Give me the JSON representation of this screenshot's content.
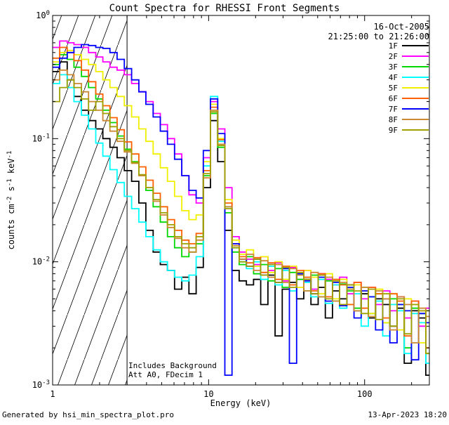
{
  "legend": {
    "date": "16-Oct-2005",
    "time": "21:25:00 to 21:26:00"
  },
  "annotations": {
    "line1": "Includes Background",
    "line2": "Att A0, FDecim 1"
  },
  "footer": {
    "left": "Generated by hsi_min_spectra_plot.pro",
    "right": "13-Apr-2023 18:20"
  },
  "chart_data": {
    "type": "line",
    "mode": "histogram-steps",
    "title": "Count Spectra for RHESSI Front Segments",
    "xlabel": "Energy (keV)",
    "ylabel": "counts cm-2 s-1 keV-1",
    "ylabel_parts": [
      {
        "t": "counts cm",
        "sup": false
      },
      {
        "t": "-2",
        "sup": true
      },
      {
        "t": " s",
        "sup": false
      },
      {
        "t": "-1",
        "sup": true
      },
      {
        "t": " keV",
        "sup": false
      },
      {
        "t": "-1",
        "sup": true
      }
    ],
    "x_scale": "log",
    "y_scale": "log",
    "xlim": [
      1,
      260
    ],
    "ylim": [
      0.001,
      1
    ],
    "x_major_ticks": [
      1,
      10,
      100
    ],
    "x_tick_labels": [
      "1",
      "10",
      "100"
    ],
    "y_tick_exponents": [
      0,
      -1,
      -2,
      -3
    ],
    "excluded_region_kev": [
      1,
      3
    ],
    "legend_position": "top-right",
    "grid": false,
    "background": "#ffffff",
    "axis_color": "#000000",
    "energy_edges": [
      1.0,
      1.11,
      1.24,
      1.37,
      1.53,
      1.7,
      1.89,
      2.1,
      2.33,
      2.59,
      2.88,
      3.21,
      3.57,
      3.96,
      4.41,
      4.9,
      5.45,
      6.05,
      6.73,
      7.48,
      8.32,
      9.25,
      10.28,
      11.43,
      12.71,
      14.13,
      15.7,
      17.46,
      19.41,
      21.58,
      23.99,
      26.67,
      29.65,
      32.96,
      36.64,
      40.74,
      45.29,
      50.35,
      55.98,
      62.23,
      69.18,
      76.91,
      85.51,
      95.06,
      105.7,
      117.5,
      130.6,
      145.2,
      161.4,
      179.5,
      199.5,
      221.8,
      246.6,
      274.2,
      304.8
    ],
    "series": [
      {
        "name": "1F",
        "color": "#000000",
        "values": [
          0.35,
          0.42,
          0.3,
          0.22,
          0.17,
          0.14,
          0.12,
          0.1,
          0.085,
          0.07,
          0.055,
          0.045,
          0.03,
          0.018,
          0.012,
          0.0095,
          0.0085,
          0.006,
          0.0075,
          0.0055,
          0.009,
          0.04,
          0.14,
          0.065,
          0.018,
          0.0085,
          0.007,
          0.0065,
          0.0072,
          0.0045,
          0.0078,
          0.0025,
          0.006,
          0.0068,
          0.005,
          0.0072,
          0.0045,
          0.0062,
          0.0035,
          0.0058,
          0.005,
          0.0065,
          0.004,
          0.0055,
          0.0035,
          0.005,
          0.0045,
          0.003,
          0.0042,
          0.0015,
          0.004,
          0.0035,
          0.0012,
          0.003
        ]
      },
      {
        "name": "2F",
        "color": "#ff00ff",
        "values": [
          0.55,
          0.62,
          0.6,
          0.58,
          0.55,
          0.5,
          0.46,
          0.42,
          0.38,
          0.36,
          0.33,
          0.28,
          0.24,
          0.2,
          0.16,
          0.13,
          0.1,
          0.075,
          0.05,
          0.035,
          0.03,
          0.07,
          0.2,
          0.12,
          0.04,
          0.016,
          0.012,
          0.0105,
          0.0095,
          0.011,
          0.0085,
          0.0098,
          0.007,
          0.009,
          0.0078,
          0.0085,
          0.006,
          0.008,
          0.0072,
          0.0065,
          0.0075,
          0.0055,
          0.0068,
          0.005,
          0.0062,
          0.0045,
          0.0058,
          0.004,
          0.0052,
          0.0035,
          0.0048,
          0.003,
          0.0042,
          0.0025
        ]
      },
      {
        "name": "3F",
        "color": "#00d800",
        "values": [
          0.4,
          0.48,
          0.44,
          0.38,
          0.32,
          0.26,
          0.21,
          0.17,
          0.135,
          0.105,
          0.082,
          0.065,
          0.05,
          0.038,
          0.028,
          0.021,
          0.016,
          0.013,
          0.011,
          0.012,
          0.014,
          0.05,
          0.16,
          0.085,
          0.025,
          0.012,
          0.0095,
          0.011,
          0.008,
          0.0095,
          0.007,
          0.0088,
          0.0062,
          0.0082,
          0.0072,
          0.0058,
          0.0078,
          0.0052,
          0.007,
          0.0048,
          0.0066,
          0.0058,
          0.0042,
          0.0062,
          0.0038,
          0.0055,
          0.0032,
          0.005,
          0.0045,
          0.002,
          0.0042,
          0.0038,
          0.0018,
          0.0035
        ]
      },
      {
        "name": "4F",
        "color": "#00ffff",
        "values": [
          0.28,
          0.33,
          0.26,
          0.2,
          0.155,
          0.12,
          0.092,
          0.072,
          0.056,
          0.044,
          0.034,
          0.027,
          0.021,
          0.016,
          0.0125,
          0.01,
          0.0085,
          0.0075,
          0.007,
          0.0078,
          0.011,
          0.06,
          0.22,
          0.095,
          0.028,
          0.013,
          0.01,
          0.0088,
          0.01,
          0.0072,
          0.0092,
          0.0065,
          0.0085,
          0.0058,
          0.0078,
          0.0068,
          0.0052,
          0.0072,
          0.0046,
          0.0065,
          0.0042,
          0.006,
          0.0055,
          0.003,
          0.0052,
          0.0048,
          0.0025,
          0.0045,
          0.004,
          0.0018,
          0.0038,
          0.0032,
          0.0015,
          0.0028
        ]
      },
      {
        "name": "5F",
        "color": "#f0f000",
        "values": [
          0.42,
          0.5,
          0.52,
          0.48,
          0.44,
          0.4,
          0.35,
          0.3,
          0.26,
          0.22,
          0.185,
          0.15,
          0.12,
          0.095,
          0.075,
          0.058,
          0.045,
          0.034,
          0.026,
          0.022,
          0.024,
          0.065,
          0.19,
          0.1,
          0.032,
          0.015,
          0.0115,
          0.0125,
          0.0092,
          0.011,
          0.0082,
          0.01,
          0.0072,
          0.0092,
          0.0062,
          0.0085,
          0.0075,
          0.0055,
          0.008,
          0.005,
          0.0072,
          0.0045,
          0.0065,
          0.0058,
          0.0038,
          0.006,
          0.0032,
          0.0055,
          0.0028,
          0.005,
          0.0045,
          0.0022,
          0.004,
          0.0035
        ]
      },
      {
        "name": "6F",
        "color": "#ff6000",
        "values": [
          0.45,
          0.55,
          0.5,
          0.43,
          0.36,
          0.29,
          0.23,
          0.185,
          0.148,
          0.118,
          0.094,
          0.075,
          0.059,
          0.046,
          0.036,
          0.028,
          0.022,
          0.018,
          0.015,
          0.014,
          0.017,
          0.055,
          0.18,
          0.098,
          0.03,
          0.014,
          0.011,
          0.0098,
          0.0108,
          0.0082,
          0.0098,
          0.0072,
          0.0092,
          0.0065,
          0.0085,
          0.0075,
          0.0058,
          0.008,
          0.0052,
          0.0072,
          0.0065,
          0.0045,
          0.0068,
          0.0042,
          0.0062,
          0.0055,
          0.0035,
          0.0055,
          0.0048,
          0.0025,
          0.0048,
          0.004,
          0.002,
          0.0038
        ]
      },
      {
        "name": "7F",
        "color": "#0000ff",
        "values": [
          0.38,
          0.45,
          0.5,
          0.55,
          0.58,
          0.57,
          0.55,
          0.54,
          0.5,
          0.44,
          0.37,
          0.3,
          0.24,
          0.19,
          0.15,
          0.115,
          0.09,
          0.068,
          0.05,
          0.038,
          0.033,
          0.08,
          0.21,
          0.11,
          0.0012,
          0.014,
          0.0105,
          0.0092,
          0.0105,
          0.0078,
          0.0095,
          0.0068,
          0.0088,
          0.0015,
          0.008,
          0.007,
          0.0055,
          0.0075,
          0.0048,
          0.0068,
          0.0044,
          0.0062,
          0.0035,
          0.0058,
          0.0052,
          0.0028,
          0.005,
          0.0022,
          0.0045,
          0.004,
          0.0016,
          0.0038,
          0.0032,
          0.0012
        ]
      },
      {
        "name": "8F",
        "color": "#cc8833",
        "values": [
          0.3,
          0.36,
          0.33,
          0.28,
          0.24,
          0.2,
          0.17,
          0.14,
          0.115,
          0.095,
          0.078,
          0.063,
          0.05,
          0.04,
          0.031,
          0.024,
          0.019,
          0.0155,
          0.013,
          0.012,
          0.015,
          0.048,
          0.17,
          0.09,
          0.028,
          0.0135,
          0.0105,
          0.0115,
          0.0085,
          0.0102,
          0.0075,
          0.0095,
          0.0068,
          0.0088,
          0.0078,
          0.0058,
          0.0082,
          0.0052,
          0.0075,
          0.0048,
          0.0068,
          0.006,
          0.004,
          0.0062,
          0.0036,
          0.0058,
          0.005,
          0.0028,
          0.0052,
          0.0045,
          0.0022,
          0.0042,
          0.0036,
          0.003
        ]
      },
      {
        "name": "9F",
        "color": "#a0a000",
        "values": [
          0.2,
          0.26,
          0.3,
          0.26,
          0.21,
          0.17,
          0.2,
          0.16,
          0.125,
          0.1,
          0.08,
          0.064,
          0.051,
          0.04,
          0.032,
          0.025,
          0.02,
          0.016,
          0.014,
          0.013,
          0.016,
          0.052,
          0.165,
          0.088,
          0.027,
          0.013,
          0.01,
          0.0092,
          0.0105,
          0.0078,
          0.0095,
          0.0068,
          0.009,
          0.0062,
          0.0082,
          0.0072,
          0.0055,
          0.0078,
          0.005,
          0.007,
          0.0045,
          0.0065,
          0.0058,
          0.0038,
          0.006,
          0.0034,
          0.0055,
          0.003,
          0.005,
          0.0026,
          0.0045,
          0.004,
          0.0018,
          0.0035
        ]
      }
    ]
  }
}
